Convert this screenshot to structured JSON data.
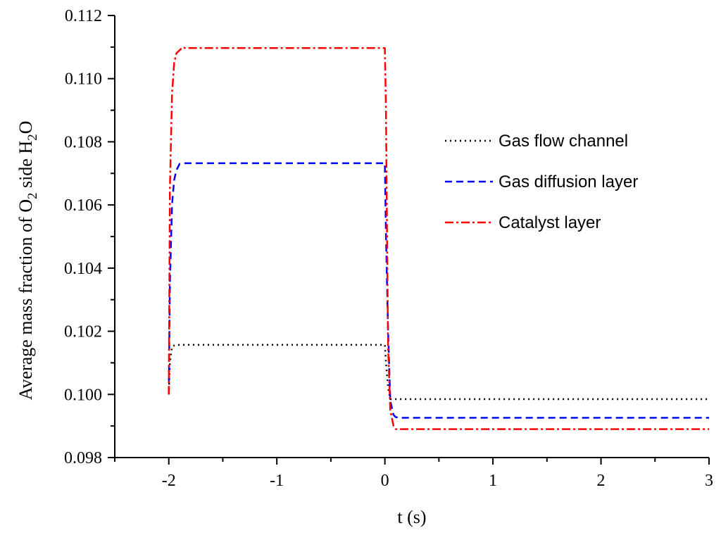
{
  "chart_data": {
    "type": "line",
    "title": "",
    "xlabel": "t (s)",
    "ylabel": {
      "text_1": "Average mass fraction of O",
      "sub_1": "2",
      "text_2": " side H",
      "sub_2": "2",
      "text_3": "O"
    },
    "xlim": [
      -2.5,
      3
    ],
    "ylim": [
      0.098,
      0.112
    ],
    "xticks": [
      -2,
      -1,
      0,
      1,
      2,
      3
    ],
    "xtick_labels": [
      "-2",
      "-1",
      "0",
      "1",
      "2",
      "3"
    ],
    "yticks": [
      0.098,
      0.1,
      0.102,
      0.104,
      0.106,
      0.108,
      0.11,
      0.112
    ],
    "ytick_labels": [
      "0.098",
      "0.100",
      "0.102",
      "0.104",
      "0.106",
      "0.108",
      "0.110",
      "0.112"
    ],
    "grid": false,
    "legend_position": "right",
    "series": [
      {
        "name": "Gas flow channel",
        "color": "#000000",
        "style": "dotted",
        "x": [
          -2.0,
          -1.99,
          -1.97,
          -1.95,
          -1.9,
          -1.5,
          -1.0,
          -0.5,
          0.0,
          0.01,
          0.03,
          0.05,
          0.08,
          0.1,
          0.15,
          0.5,
          1.0,
          2.0,
          3.0
        ],
        "y": [
          0.1,
          0.101,
          0.1015,
          0.10155,
          0.10157,
          0.10157,
          0.10157,
          0.10157,
          0.10157,
          0.101,
          0.1002,
          0.09985,
          0.09985,
          0.09985,
          0.09985,
          0.09985,
          0.09985,
          0.09985,
          0.09985
        ]
      },
      {
        "name": "Gas diffusion layer",
        "color": "#0000ff",
        "style": "dashed",
        "x": [
          -2.0,
          -1.99,
          -1.97,
          -1.95,
          -1.93,
          -1.9,
          -1.85,
          -1.5,
          -1.0,
          -0.5,
          0.0,
          0.01,
          0.03,
          0.05,
          0.08,
          0.1,
          0.15,
          0.5,
          1.0,
          2.0,
          3.0
        ],
        "y": [
          0.1,
          0.1035,
          0.106,
          0.1068,
          0.1071,
          0.1073,
          0.10732,
          0.10732,
          0.10732,
          0.10732,
          0.10732,
          0.105,
          0.102,
          0.0998,
          0.09935,
          0.09928,
          0.09926,
          0.09926,
          0.09926,
          0.09926,
          0.09926
        ]
      },
      {
        "name": "Catalyst layer",
        "color": "#ff0000",
        "style": "dashdot",
        "x": [
          -2.0,
          -1.99,
          -1.97,
          -1.95,
          -1.93,
          -1.9,
          -1.87,
          -1.85,
          -1.5,
          -1.0,
          -0.5,
          0.0,
          0.01,
          0.02,
          0.03,
          0.05,
          0.08,
          0.1,
          0.15,
          0.2,
          0.5,
          1.0,
          2.0,
          3.0
        ],
        "y": [
          0.1,
          0.1065,
          0.1095,
          0.1105,
          0.1108,
          0.1109,
          0.111,
          0.11097,
          0.11097,
          0.11097,
          0.11097,
          0.11097,
          0.109,
          0.105,
          0.1015,
          0.0995,
          0.099,
          0.0989,
          0.0989,
          0.0989,
          0.0989,
          0.0989,
          0.0989,
          0.0989
        ]
      }
    ]
  }
}
